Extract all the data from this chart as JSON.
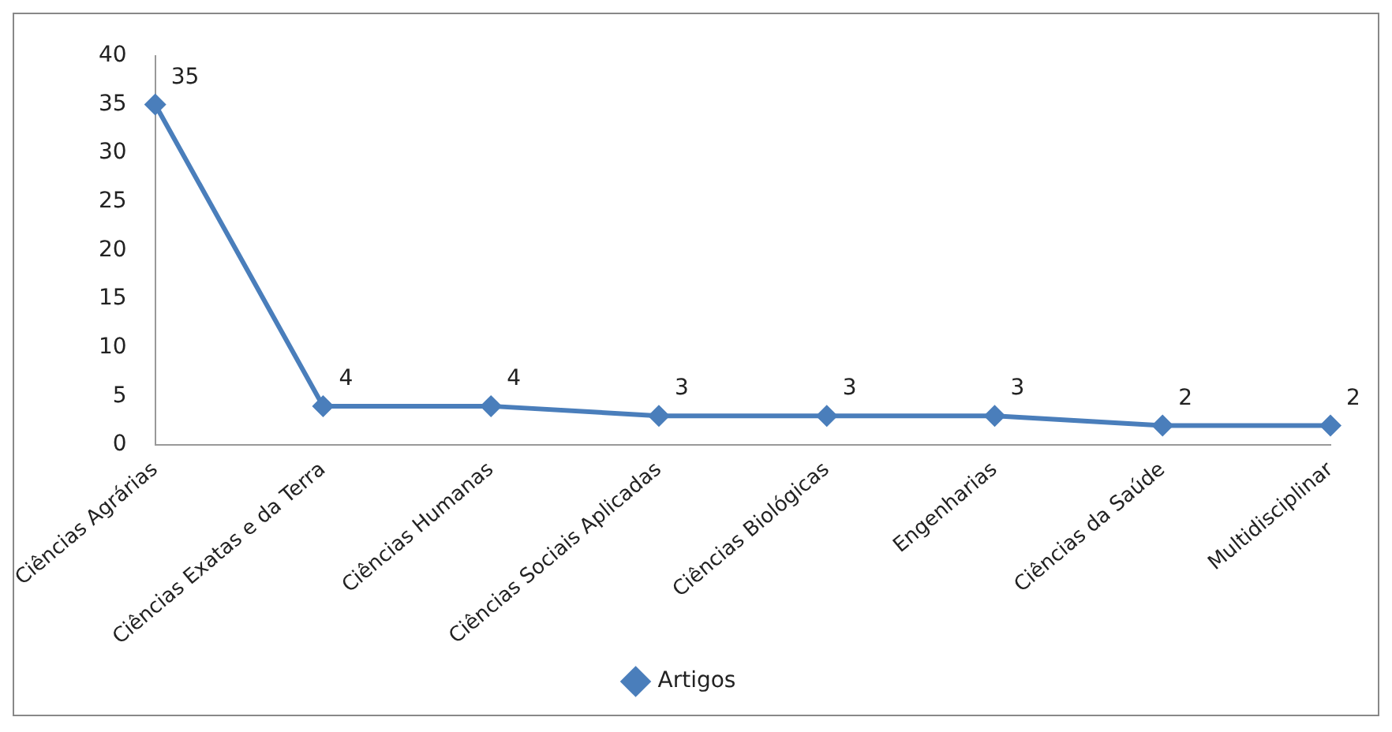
{
  "chart_data": {
    "type": "line",
    "categories": [
      "Ciências Agrárias",
      "Ciências Exatas e da Terra",
      "Ciências Humanas",
      "Ciências Sociais Aplicadas",
      "Ciências Biológicas",
      "Engenharias",
      "Ciências da Saúde",
      "Multidisciplinar"
    ],
    "series": [
      {
        "name": "Artigos",
        "color": "#4a7ebb",
        "values": [
          35,
          4,
          4,
          3,
          3,
          3,
          2,
          2
        ]
      }
    ],
    "ylim": [
      0,
      40
    ],
    "yticks": [
      0,
      5,
      10,
      15,
      20,
      25,
      30,
      35,
      40
    ],
    "grid": false,
    "legend": "bottom",
    "marker": "diamond",
    "line_style": "solid",
    "data_labels": true
  }
}
